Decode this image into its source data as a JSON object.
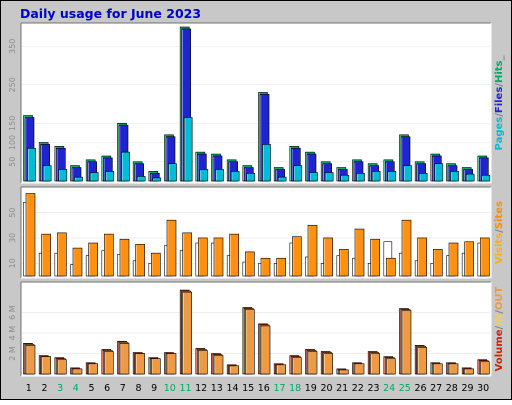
{
  "chart_data": {
    "type": "bar",
    "title": "Daily usage for June 2023",
    "days": [
      "1",
      "2",
      "3",
      "4",
      "5",
      "6",
      "7",
      "8",
      "9",
      "10",
      "11",
      "12",
      "13",
      "14",
      "15",
      "16",
      "17",
      "18",
      "19",
      "20",
      "21",
      "22",
      "23",
      "24",
      "25",
      "26",
      "27",
      "28",
      "29",
      "30"
    ],
    "weekend_days": [
      "3",
      "4",
      "10",
      "11",
      "17",
      "18",
      "24",
      "25"
    ],
    "colors": {
      "frame_bg": "#c8c8c8",
      "panel_bg": "#ffffff",
      "title": "#0000cc",
      "pages": "#00bcd4",
      "files": "#1e24d0",
      "hits": "#00aa66",
      "visits": "#ff9010",
      "sites": "#ff8c00",
      "volume": "#cc2200",
      "in": "#eecc66",
      "out": "#ee9944",
      "weekday_label": "#000000",
      "weekend_label": "#00aa66"
    },
    "panels": [
      {
        "id": "pages-files-hits",
        "ymax": 400,
        "ticks": [
          50,
          100,
          150,
          250,
          350
        ],
        "tick_labels": [
          "50",
          "100",
          "150",
          "250",
          "350"
        ],
        "series": [
          {
            "name": "Hits",
            "values": [
              170,
              100,
              90,
              40,
              55,
              65,
              150,
              50,
              25,
              120,
              400,
              75,
              70,
              55,
              40,
              230,
              35,
              90,
              75,
              50,
              35,
              55,
              45,
              55,
              120,
              50,
              70,
              45,
              35,
              65
            ]
          },
          {
            "name": "Files",
            "values": [
              165,
              95,
              85,
              35,
              50,
              60,
              145,
              45,
              20,
              115,
              395,
              70,
              65,
              50,
              35,
              225,
              30,
              85,
              70,
              45,
              30,
              50,
              40,
              50,
              115,
              45,
              65,
              40,
              30,
              60
            ]
          },
          {
            "name": "Pages",
            "values": [
              85,
              40,
              30,
              10,
              22,
              25,
              75,
              12,
              8,
              45,
              165,
              30,
              30,
              25,
              20,
              95,
              10,
              40,
              22,
              22,
              15,
              20,
              25,
              25,
              40,
              20,
              45,
              25,
              18,
              15
            ]
          }
        ],
        "legend": [
          {
            "text": "Pages",
            "color": "#00bcd4"
          },
          {
            "text": "/",
            "color": "#808080"
          },
          {
            "text": "Files",
            "color": "#1e24d0"
          },
          {
            "text": "/",
            "color": "#808080"
          },
          {
            "text": "Hits",
            "color": "#00aa66"
          },
          {
            "text": "_",
            "color": "#808080"
          }
        ]
      },
      {
        "id": "visits-sites",
        "ymax": 67,
        "ticks": [
          10,
          30,
          50
        ],
        "tick_labels": [
          "10",
          "30",
          "50"
        ],
        "series": [
          {
            "name": "Sites",
            "values": [
              58,
              18,
              18,
              9,
              16,
              20,
              17,
              12,
              10,
              24,
              20,
              26,
              26,
              16,
              11,
              10,
              10,
              26,
              15,
              10,
              16,
              14,
              10,
              27,
              18,
              12,
              10,
              16,
              18,
              26
            ]
          },
          {
            "name": "Visits",
            "values": [
              65,
              33,
              34,
              22,
              26,
              33,
              29,
              25,
              18,
              44,
              34,
              30,
              30,
              33,
              19,
              14,
              14,
              31,
              40,
              30,
              21,
              37,
              29,
              14,
              44,
              30,
              21,
              26,
              27,
              30
            ]
          }
        ],
        "legend": [
          {
            "text": "Visits",
            "color": "#ffb000"
          },
          {
            "text": "/",
            "color": "#808080"
          },
          {
            "text": "Sites",
            "color": "#ff8c00"
          }
        ]
      },
      {
        "id": "volume",
        "ymax": 8.6,
        "ticks": [
          2,
          4,
          6
        ],
        "tick_labels": [
          "2 M",
          "4 M",
          "6 M"
        ],
        "series": [
          {
            "name": "Volume",
            "values": [
              3.0,
              1.8,
              1.6,
              0.6,
              1.1,
              2.4,
              3.2,
              2.1,
              1.6,
              2.1,
              8.2,
              2.5,
              2.0,
              0.9,
              6.5,
              4.9,
              1.0,
              1.8,
              2.4,
              2.2,
              0.5,
              1.1,
              2.2,
              1.7,
              6.4,
              2.8,
              1.1,
              1.1,
              0.6,
              1.4
            ]
          },
          {
            "name": "IN",
            "values": [
              2.9,
              1.7,
              1.5,
              0.5,
              1.0,
              2.3,
              3.1,
              2.0,
              1.5,
              2.0,
              8.1,
              2.4,
              1.9,
              0.8,
              6.4,
              4.8,
              0.9,
              1.7,
              2.3,
              2.1,
              0.4,
              1.0,
              2.1,
              1.6,
              6.3,
              2.7,
              1.0,
              1.0,
              0.5,
              1.3
            ]
          },
          {
            "name": "OUT",
            "values": [
              2.8,
              1.7,
              1.4,
              0.5,
              1.0,
              2.2,
              3.0,
              2.0,
              1.5,
              2.0,
              8.0,
              2.3,
              1.8,
              0.8,
              6.3,
              4.7,
              0.9,
              1.6,
              2.2,
              2.0,
              0.4,
              1.0,
              2.0,
              1.5,
              6.2,
              2.6,
              1.0,
              1.0,
              0.5,
              1.2
            ]
          }
        ],
        "legend": [
          {
            "text": "Volume",
            "color": "#cc2200"
          },
          {
            "text": "/",
            "color": "#808080"
          },
          {
            "text": "IN",
            "color": "#eecc66"
          },
          {
            "text": "/",
            "color": "#808080"
          },
          {
            "text": "OUT",
            "color": "#ee9944"
          }
        ]
      }
    ]
  }
}
